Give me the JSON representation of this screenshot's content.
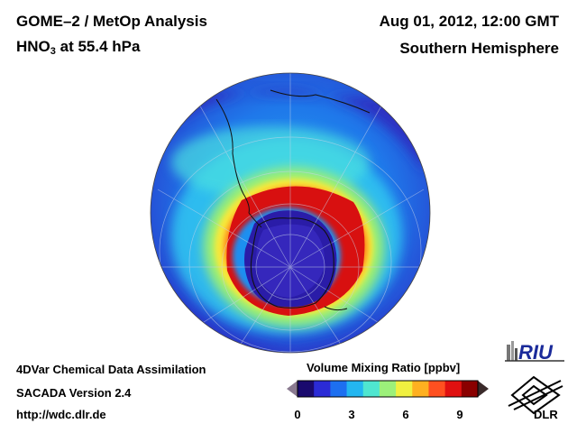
{
  "header": {
    "title_line1": "GOME–2 / MetOp Analysis",
    "species_main": "HNO",
    "species_sub": "3",
    "species_rest": " at 55.4 hPa",
    "date": "Aug 01, 2012, 12:00 GMT",
    "hemisphere": "Southern Hemisphere"
  },
  "footer": {
    "line1": "4DVar Chemical Data Assimilation",
    "line2": "SACADA Version 2.4",
    "line3": "http://wdc.dlr.de"
  },
  "colorbar": {
    "title": "Volume Mixing Ratio [ppbv]",
    "min": 0,
    "max": 10,
    "ticks": [
      "0",
      "3",
      "6",
      "9"
    ],
    "tick_values": [
      0,
      3,
      6,
      9
    ],
    "colors": [
      "#1a0a6e",
      "#2b2bd6",
      "#1d6ff0",
      "#23b6f0",
      "#4fe6d0",
      "#9cf07a",
      "#f0f040",
      "#ffb020",
      "#ff5020",
      "#e01010",
      "#8a0000"
    ]
  },
  "map": {
    "projection": "orthographic",
    "hemisphere": "south",
    "background_value_ppbv": 2.2,
    "high_ring_value_ppbv": 8.8,
    "depleted_core_value_ppbv": 0.4
  },
  "logos": {
    "riu_text": "RIU",
    "dlr_text": "DLR"
  }
}
